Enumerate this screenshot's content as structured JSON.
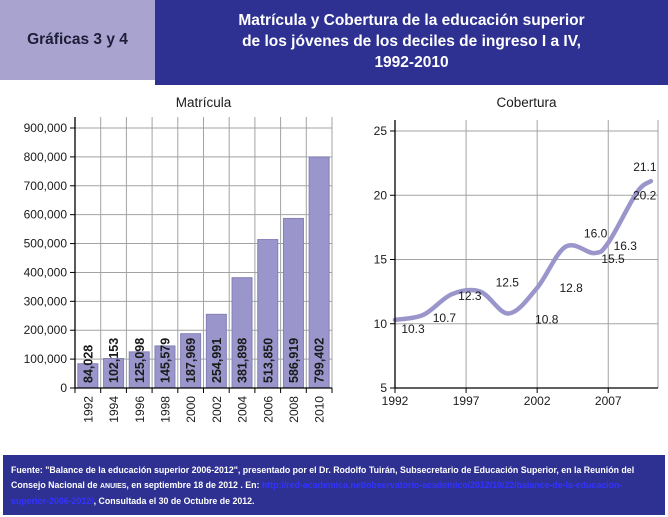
{
  "header": {
    "label_box": "Gráficas 3 y 4",
    "title_lines": [
      "Matrícula y Cobertura de la educación superior",
      "de los jóvenes de los deciles de ingreso I a IV,",
      "1992-2010"
    ]
  },
  "colors": {
    "accent": "#9A96CB",
    "band_blue": "#2E3192",
    "band_light": "#A9A3D0",
    "grid": "#A3A3A3",
    "axis": "#000000",
    "link": "#3333FF"
  },
  "chart_data": [
    {
      "type": "bar",
      "title": "Matrícula",
      "categories": [
        "1992",
        "1994",
        "1996",
        "1998",
        "2000",
        "2002",
        "2004",
        "2006",
        "2008",
        "2010"
      ],
      "values": [
        84028,
        102153,
        125098,
        145579,
        187969,
        254991,
        381898,
        513850,
        586919,
        799402
      ],
      "value_labels": [
        "84,028",
        "102,153",
        "125,098",
        "145,579",
        "187,969",
        "254,991",
        "381,898",
        "513,850",
        "586,919",
        "799,402"
      ],
      "ylim": [
        0,
        900000
      ],
      "y_tick_step": 100000,
      "y_ticks": [
        "0",
        "100,000",
        "200,000",
        "300,000",
        "400,000",
        "500,000",
        "600,000",
        "700,000",
        "800,000",
        "900,000"
      ],
      "xlabel": "",
      "ylabel": "",
      "grid": true,
      "legend": "none"
    },
    {
      "type": "line",
      "title": "Cobertura",
      "x": [
        1992,
        1994,
        1996,
        1998,
        2000,
        2002,
        2004,
        2006,
        2007,
        2009,
        2010
      ],
      "values": [
        10.3,
        10.7,
        12.3,
        12.5,
        10.8,
        12.8,
        16.0,
        15.5,
        16.3,
        20.2,
        21.1
      ],
      "point_labels": [
        "10.3",
        "10.7",
        "12.3",
        "12.5",
        "10.8",
        "12.8",
        "16.0",
        "15.5",
        "16.3",
        "20.2",
        "21.1"
      ],
      "xlim": [
        1992,
        2010.5
      ],
      "ylim": [
        5,
        25
      ],
      "x_ticks": [
        1992,
        1997,
        2002,
        2007
      ],
      "y_ticks": [
        5,
        10,
        15,
        20,
        25
      ],
      "xlabel": "",
      "ylabel": "",
      "grid": true,
      "legend": "none"
    }
  ],
  "footer": {
    "line1": "Fuente: \"Balance de la educación superior 2006-2012\", presentado por el Dr. Rodolfo Tuirán, Subsecretario de Educación Superior, en la Reunión del",
    "line2_prefix": "Consejo Nacional de ",
    "line2_acronym": "ANUIES",
    "line2_mid": ", en septiembre 18 de 2012 . En: ",
    "line2_link": "http://red-academica.net/observatorio-academico/2012/10/22/balance-de-la-educacion-",
    "line3_link": "superior-2006-2012/",
    "line3_suffix": ", Consultada el 30 de Octubre de 2012."
  }
}
